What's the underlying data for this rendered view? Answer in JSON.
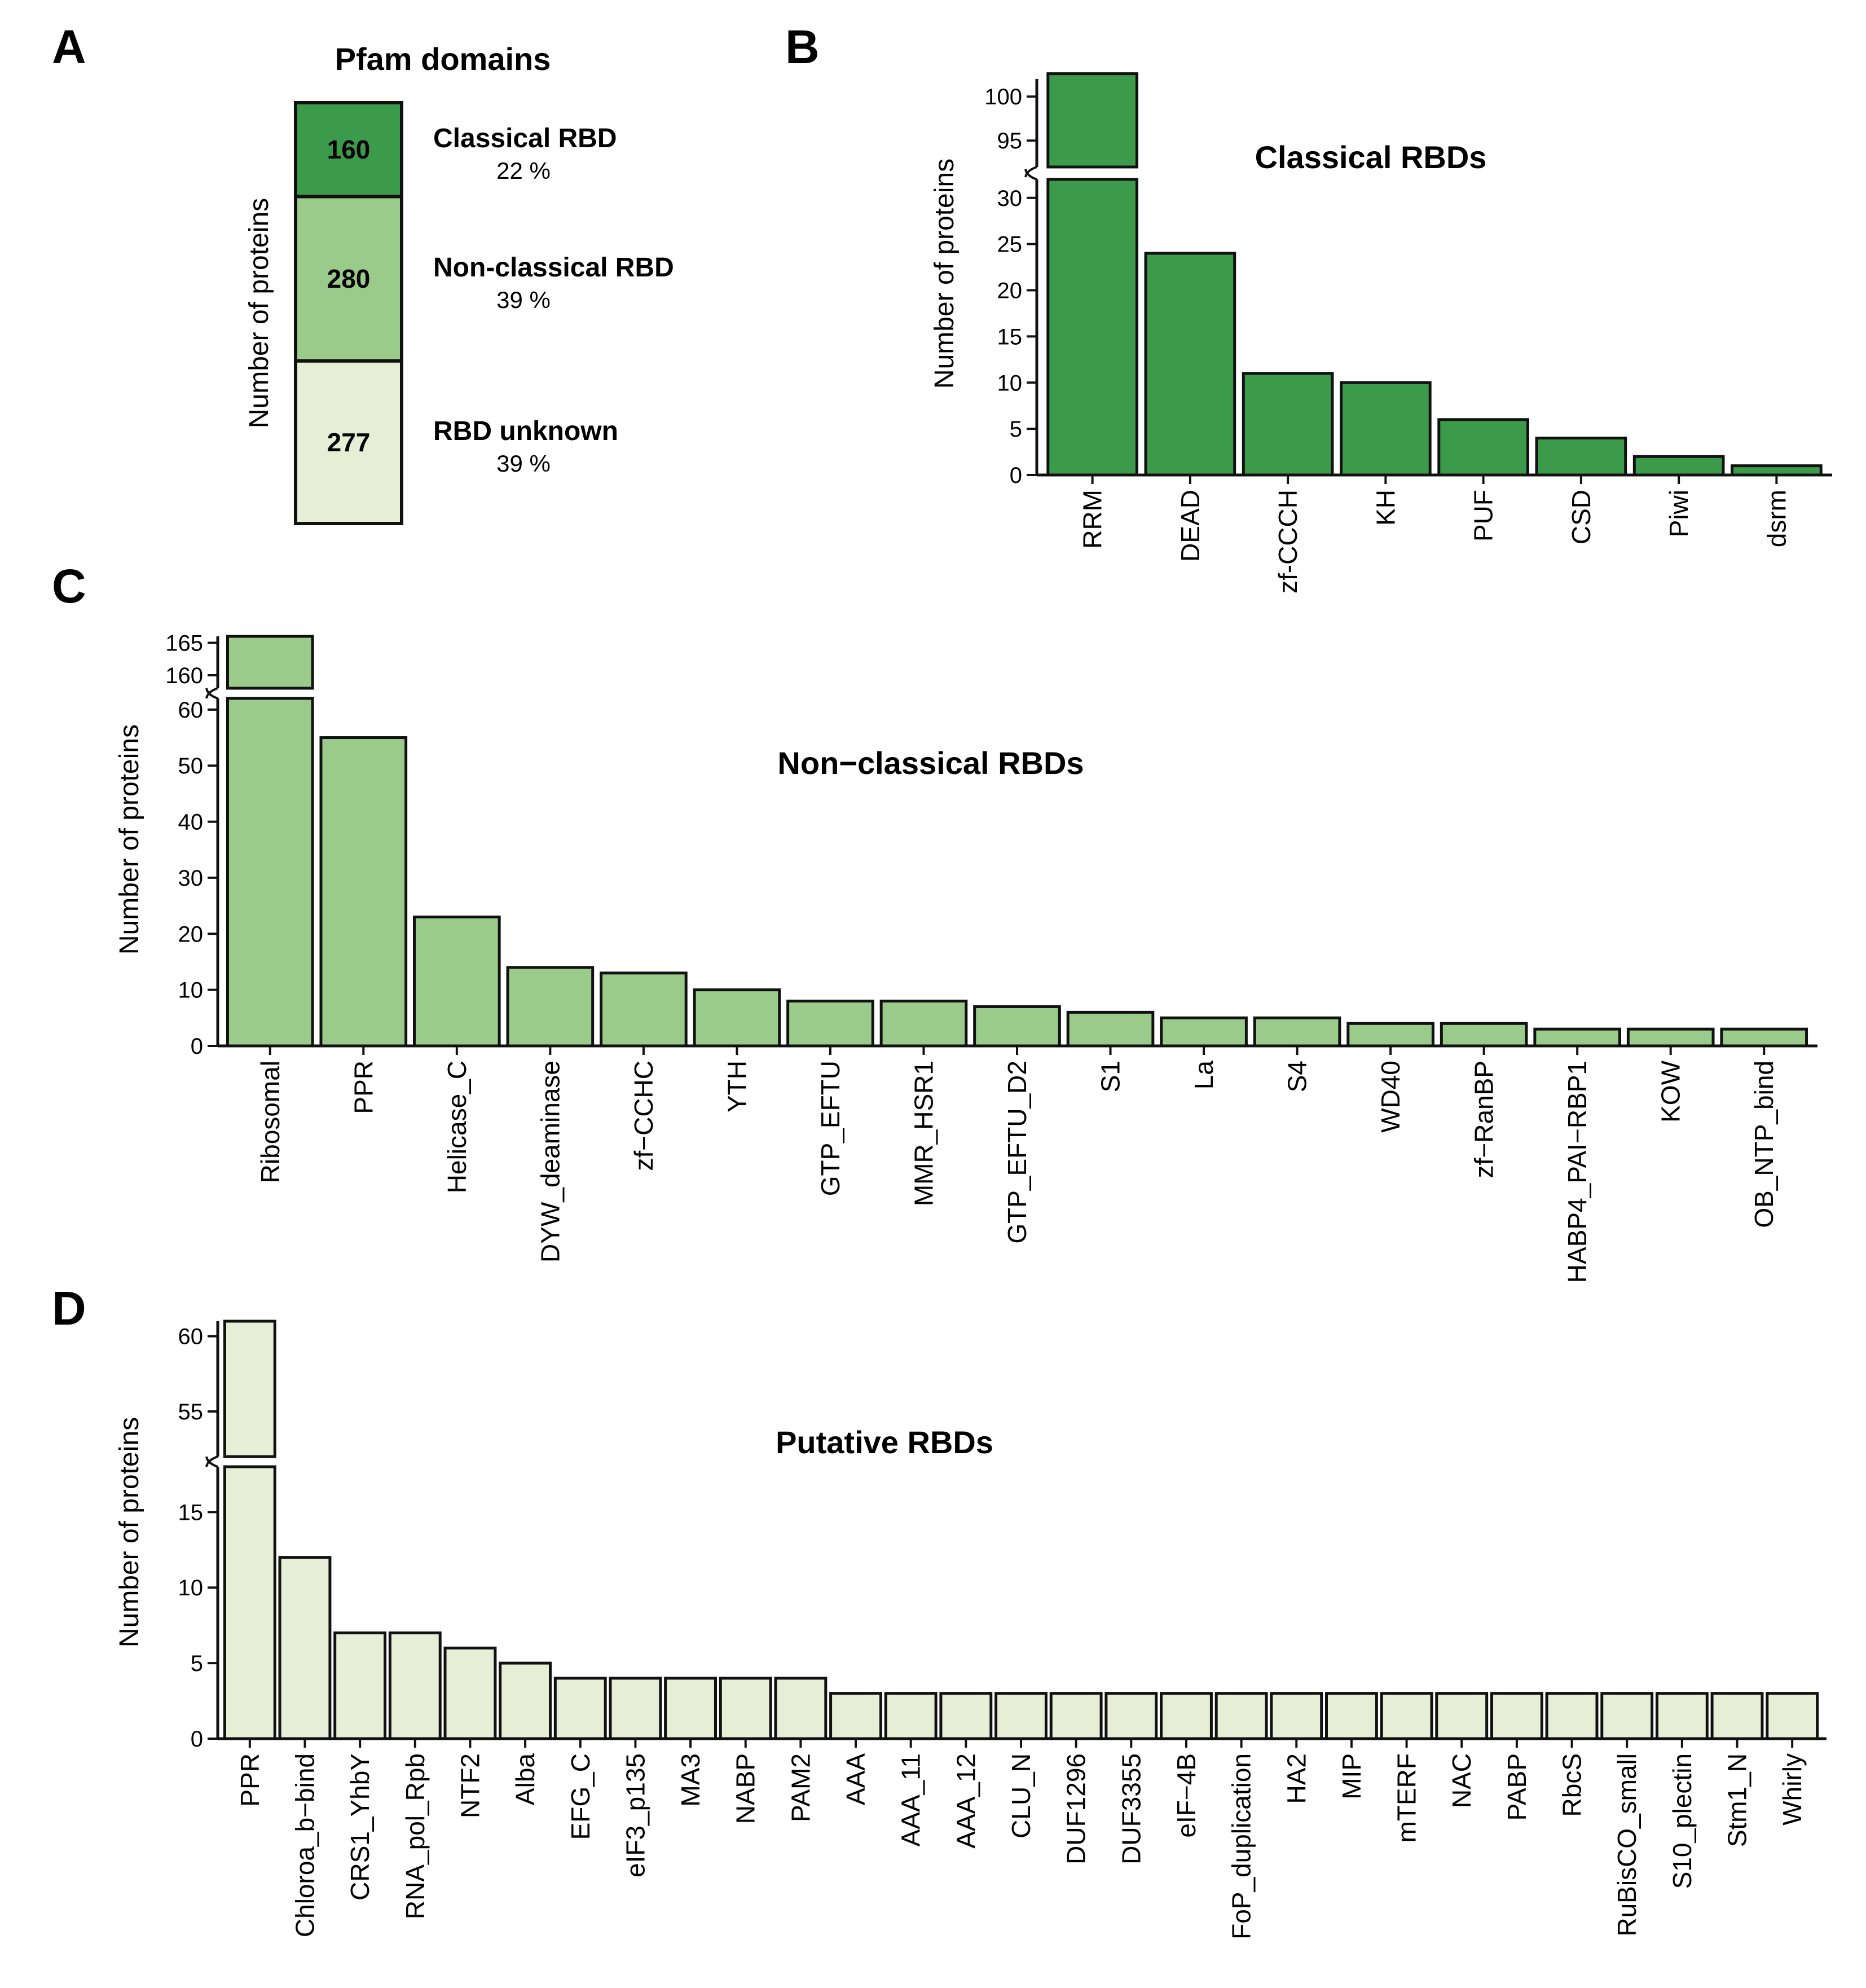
{
  "panels": {
    "a": "A",
    "b": "B",
    "c": "C",
    "d": "D"
  },
  "colors": {
    "classical": "#3c9a4b",
    "nonclassical": "#9bcb8b",
    "putative": "#e6efd6",
    "stroke": "#111111"
  },
  "chart_data": [
    {
      "id": "A",
      "type": "bar",
      "stacked": true,
      "title": "Pfam domains",
      "ylabel": "Number of proteins",
      "segments": [
        {
          "name": "Classical RBD",
          "value": 160,
          "percent": "22 %"
        },
        {
          "name": "Non-classical RBD",
          "value": 280,
          "percent": "39 %"
        },
        {
          "name": "RBD unknown",
          "value": 277,
          "percent": "39 %"
        }
      ]
    },
    {
      "id": "B",
      "type": "bar",
      "title": "Classical RBDs",
      "ylabel": "Number of proteins",
      "categories": [
        "RRM",
        "DEAD",
        "zf-CCCH",
        "KH",
        "PUF",
        "CSD",
        "Piwi",
        "dsrm"
      ],
      "values": [
        103,
        24,
        11,
        10,
        6,
        4,
        2,
        1
      ],
      "ylim_lower": [
        0,
        32
      ],
      "ylim_upper": [
        92,
        102
      ],
      "yticks_lower": [
        0,
        5,
        10,
        15,
        20,
        25,
        30
      ],
      "yticks_upper": [
        95,
        100
      ]
    },
    {
      "id": "C",
      "type": "bar",
      "title": "Non−classical RBDs",
      "ylabel": "Number of proteins",
      "categories": [
        "Ribosomal",
        "PPR",
        "Helicase_C",
        "DYW_deaminase",
        "zf−CCHC",
        "YTH",
        "GTP_EFTU",
        "MMR_HSR1",
        "GTP_EFTU_D2",
        "S1",
        "La",
        "S4",
        "WD40",
        "zf−RanBP",
        "HABP4_PAI−RBP1",
        "KOW",
        "OB_NTP_bind"
      ],
      "values": [
        166,
        55,
        23,
        14,
        13,
        10,
        8,
        8,
        7,
        6,
        5,
        5,
        4,
        4,
        3,
        3,
        3
      ],
      "ylim_lower": [
        0,
        62
      ],
      "ylim_upper": [
        158,
        166
      ],
      "yticks_lower": [
        0,
        10,
        20,
        30,
        40,
        50,
        60
      ],
      "yticks_upper": [
        160,
        165
      ]
    },
    {
      "id": "D",
      "type": "bar",
      "title": "Putative RBDs",
      "ylabel": "Number of proteins",
      "categories": [
        "PPR",
        "Chloroa_b−bind",
        "CRS1_YhbY",
        "RNA_pol_Rpb",
        "NTF2",
        "Alba",
        "EFG_C",
        "eIF3_p135",
        "MA3",
        "NABP",
        "PAM2",
        "AAA",
        "AAA_11",
        "AAA_12",
        "CLU_N",
        "DUF1296",
        "DUF3355",
        "eIF−4B",
        "FoP_duplication",
        "HA2",
        "MIP",
        "mTERF",
        "NAC",
        "PABP",
        "RbcS",
        "RuBisCO_small",
        "S10_plectin",
        "Stm1_N",
        "Whirly"
      ],
      "values": [
        61,
        12,
        7,
        7,
        6,
        5,
        4,
        4,
        4,
        4,
        4,
        3,
        3,
        3,
        3,
        3,
        3,
        3,
        3,
        3,
        3,
        3,
        3,
        3,
        3,
        3,
        3,
        3,
        3
      ],
      "ylim_lower": [
        0,
        18
      ],
      "ylim_upper": [
        52,
        61
      ],
      "yticks_lower": [
        0,
        5,
        10,
        15
      ],
      "yticks_upper": [
        55,
        60
      ]
    }
  ]
}
